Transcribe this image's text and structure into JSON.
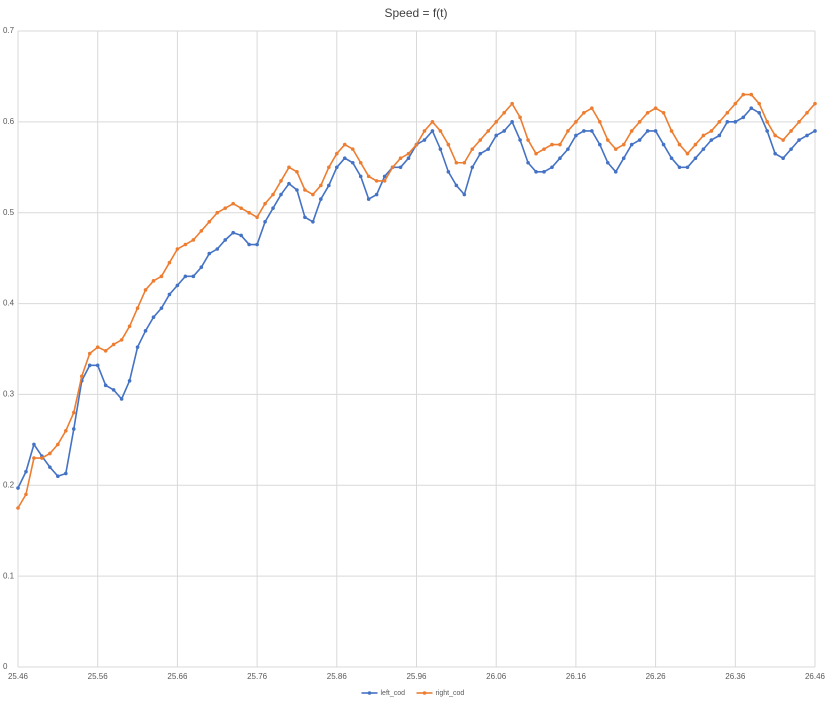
{
  "chart_data": {
    "type": "line",
    "title": "Speed = f(t)",
    "x": [
      25.46,
      25.47,
      25.48,
      25.49,
      25.5,
      25.51,
      25.52,
      25.53,
      25.54,
      25.55,
      25.56,
      25.57,
      25.58,
      25.59,
      25.6,
      25.61,
      25.62,
      25.63,
      25.64,
      25.65,
      25.66,
      25.67,
      25.68,
      25.69,
      25.7,
      25.71,
      25.72,
      25.73,
      25.74,
      25.75,
      25.76,
      25.77,
      25.78,
      25.79,
      25.8,
      25.81,
      25.82,
      25.83,
      25.84,
      25.85,
      25.86,
      25.87,
      25.88,
      25.89,
      25.9,
      25.91,
      25.92,
      25.93,
      25.94,
      25.95,
      25.96,
      25.97,
      25.98,
      25.99,
      26.0,
      26.01,
      26.02,
      26.03,
      26.04,
      26.05,
      26.06,
      26.07,
      26.08,
      26.09,
      26.1,
      26.11,
      26.12,
      26.13,
      26.14,
      26.15,
      26.16,
      26.17,
      26.18,
      26.19,
      26.2,
      26.21,
      26.22,
      26.23,
      26.24,
      26.25,
      26.26,
      26.27,
      26.28,
      26.29,
      26.3,
      26.31,
      26.32,
      26.33,
      26.34,
      26.35,
      26.36,
      26.37,
      26.38,
      26.39,
      26.4,
      26.41,
      26.42,
      26.43,
      26.44,
      26.45,
      26.46
    ],
    "series": [
      {
        "name": "left_cod",
        "color": "#4472c4",
        "values": [
          0.197,
          0.215,
          0.245,
          0.232,
          0.22,
          0.21,
          0.213,
          0.262,
          0.315,
          0.332,
          0.332,
          0.31,
          0.305,
          0.295,
          0.315,
          0.352,
          0.37,
          0.385,
          0.395,
          0.41,
          0.42,
          0.43,
          0.43,
          0.44,
          0.455,
          0.46,
          0.47,
          0.478,
          0.475,
          0.465,
          0.465,
          0.49,
          0.505,
          0.52,
          0.532,
          0.525,
          0.495,
          0.49,
          0.515,
          0.53,
          0.55,
          0.56,
          0.555,
          0.54,
          0.515,
          0.52,
          0.54,
          0.55,
          0.55,
          0.56,
          0.575,
          0.58,
          0.59,
          0.57,
          0.545,
          0.53,
          0.52,
          0.55,
          0.565,
          0.57,
          0.585,
          0.59,
          0.6,
          0.58,
          0.555,
          0.545,
          0.545,
          0.55,
          0.56,
          0.57,
          0.585,
          0.59,
          0.59,
          0.575,
          0.555,
          0.545,
          0.56,
          0.575,
          0.58,
          0.59,
          0.59,
          0.575,
          0.56,
          0.55,
          0.55,
          0.56,
          0.57,
          0.58,
          0.585,
          0.6,
          0.6,
          0.605,
          0.615,
          0.61,
          0.59,
          0.565,
          0.56,
          0.57,
          0.58,
          0.585,
          0.59
        ]
      },
      {
        "name": "right_cod",
        "color": "#ed7d31",
        "values": [
          0.175,
          0.19,
          0.23,
          0.23,
          0.235,
          0.245,
          0.26,
          0.28,
          0.32,
          0.345,
          0.352,
          0.348,
          0.355,
          0.36,
          0.375,
          0.395,
          0.415,
          0.425,
          0.43,
          0.445,
          0.46,
          0.465,
          0.47,
          0.48,
          0.49,
          0.5,
          0.505,
          0.51,
          0.505,
          0.5,
          0.495,
          0.51,
          0.52,
          0.535,
          0.55,
          0.545,
          0.525,
          0.52,
          0.53,
          0.55,
          0.565,
          0.575,
          0.57,
          0.555,
          0.54,
          0.535,
          0.535,
          0.55,
          0.56,
          0.565,
          0.575,
          0.59,
          0.6,
          0.59,
          0.575,
          0.555,
          0.555,
          0.57,
          0.58,
          0.59,
          0.6,
          0.61,
          0.62,
          0.605,
          0.58,
          0.565,
          0.57,
          0.575,
          0.575,
          0.59,
          0.6,
          0.61,
          0.615,
          0.6,
          0.58,
          0.57,
          0.575,
          0.59,
          0.6,
          0.61,
          0.615,
          0.61,
          0.59,
          0.575,
          0.565,
          0.575,
          0.585,
          0.59,
          0.6,
          0.61,
          0.62,
          0.63,
          0.63,
          0.62,
          0.6,
          0.585,
          0.58,
          0.59,
          0.6,
          0.61,
          0.62
        ]
      }
    ],
    "xlim": [
      25.46,
      26.46
    ],
    "xticks": [
      25.46,
      25.56,
      25.66,
      25.76,
      25.86,
      25.96,
      26.06,
      26.16,
      26.26,
      26.36,
      26.46
    ],
    "ylim": [
      0,
      0.7
    ],
    "yticks": [
      0,
      0.1,
      0.2,
      0.3,
      0.4,
      0.5,
      0.6,
      0.7
    ],
    "grid": true,
    "legend": "bottom"
  }
}
